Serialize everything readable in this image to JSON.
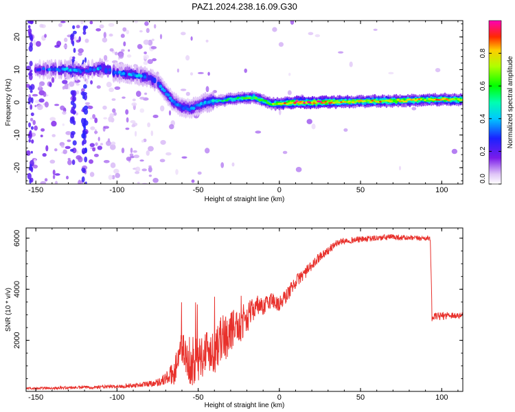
{
  "figure": {
    "title": "PAZ1.2024.238.16.09.G30"
  },
  "chart_data": [
    {
      "type": "heatmap",
      "xlabel": "Height of straight line (km)",
      "ylabel": "Frequency (Hz)",
      "xlim": [
        -156,
        113
      ],
      "ylim": [
        -25,
        25
      ],
      "xticks": [
        -150,
        -100,
        -50,
        0,
        50,
        100
      ],
      "yticks": [
        -20,
        -10,
        0,
        10,
        20
      ],
      "colorbar": {
        "label": "Normalized spectral amplitude",
        "range": [
          0,
          1
        ],
        "ticks": [
          0.0,
          0.2,
          0.4,
          0.6,
          0.8
        ],
        "colormap": "rainbow (violet-blue-cyan-green-yellow-red-magenta)"
      },
      "ridge": {
        "x": [
          -150,
          -140,
          -130,
          -120,
          -110,
          -100,
          -90,
          -80,
          -75,
          -70,
          -65,
          -60,
          -55,
          -50,
          -45,
          -40,
          -35,
          -30,
          -25,
          -20,
          -15,
          -10,
          -5,
          0,
          10,
          20,
          30,
          40,
          50,
          60,
          70,
          80,
          90,
          100,
          113
        ],
        "y": [
          10,
          10,
          10,
          9.5,
          10.5,
          9,
          8.5,
          7.5,
          6,
          3,
          0,
          -1.5,
          -2,
          -1,
          0,
          0.3,
          0.5,
          1,
          1.2,
          1.3,
          1.5,
          0.5,
          -0.5,
          -0.5,
          0,
          0,
          0,
          0.2,
          0.2,
          0.4,
          0.4,
          0.6,
          0.8,
          0.8,
          0.8
        ],
        "amplitude": [
          0.2,
          0.3,
          0.35,
          0.25,
          0.35,
          0.3,
          0.35,
          0.35,
          0.3,
          0.3,
          0.3,
          0.3,
          0.3,
          0.3,
          0.35,
          0.4,
          0.45,
          0.5,
          0.5,
          0.55,
          0.6,
          0.55,
          0.6,
          0.7,
          0.9,
          0.85,
          0.8,
          0.75,
          0.7,
          0.75,
          0.7,
          0.75,
          0.7,
          0.75,
          0.7
        ]
      }
    },
    {
      "type": "line",
      "xlabel": "Height of straight line (km)",
      "ylabel": "SNR (10 * v/v)",
      "xlim": [
        -156,
        113
      ],
      "ylim": [
        0,
        6400
      ],
      "xticks": [
        -150,
        -100,
        -50,
        0,
        50,
        100
      ],
      "yticks": [
        2000,
        4000,
        6000
      ],
      "color": "#e8302b",
      "series": [
        {
          "x": [
            -156,
            -140,
            -120,
            -100,
            -85,
            -75,
            -70,
            -65,
            -62,
            -60,
            -55,
            -50,
            -45,
            -40,
            -35,
            -30,
            -25,
            -20,
            -15,
            -10,
            -5,
            0,
            5,
            10,
            15,
            20,
            25,
            30,
            35,
            40,
            50,
            60,
            70,
            80,
            90,
            93,
            94,
            100,
            105,
            110,
            113
          ],
          "y": [
            120,
            130,
            160,
            190,
            260,
            350,
            500,
            700,
            1500,
            1800,
            900,
            1300,
            1600,
            1700,
            2100,
            2400,
            2600,
            2900,
            3300,
            3300,
            3600,
            3400,
            3800,
            4300,
            4600,
            4900,
            5300,
            5500,
            5800,
            5900,
            5950,
            6000,
            6050,
            6000,
            6000,
            6000,
            2900,
            2950,
            3000,
            2950,
            3000
          ],
          "noise": [
            40,
            50,
            60,
            70,
            100,
            150,
            250,
            500,
            700,
            700,
            800,
            900,
            900,
            900,
            900,
            800,
            700,
            600,
            400,
            350,
            350,
            350,
            300,
            250,
            250,
            200,
            180,
            160,
            140,
            120,
            120,
            120,
            120,
            100,
            100,
            100,
            150,
            150,
            150,
            120,
            100
          ]
        }
      ]
    }
  ]
}
